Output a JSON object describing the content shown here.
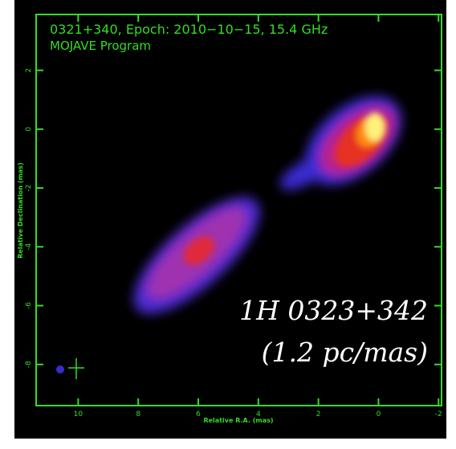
{
  "chart_data": {
    "type": "map",
    "title": "0321+340, Epoch: 2010−10−15, 15.4 GHz",
    "subtitle": "MOJAVE Program",
    "x_label": "Relative R.A. (mas)",
    "y_label": "Relative Declination (mas)",
    "annotation": [
      "1H 0323+342",
      "(1.2 pc/mas)"
    ],
    "xlim": [
      11.4,
      -2.1
    ],
    "ylim": [
      -9.4,
      3.9
    ],
    "xticks": [
      10,
      8,
      6,
      4,
      2,
      0,
      -2
    ],
    "yticks": [
      2,
      0,
      -2,
      -4,
      -6,
      -8
    ],
    "color": "#33dd22"
  }
}
